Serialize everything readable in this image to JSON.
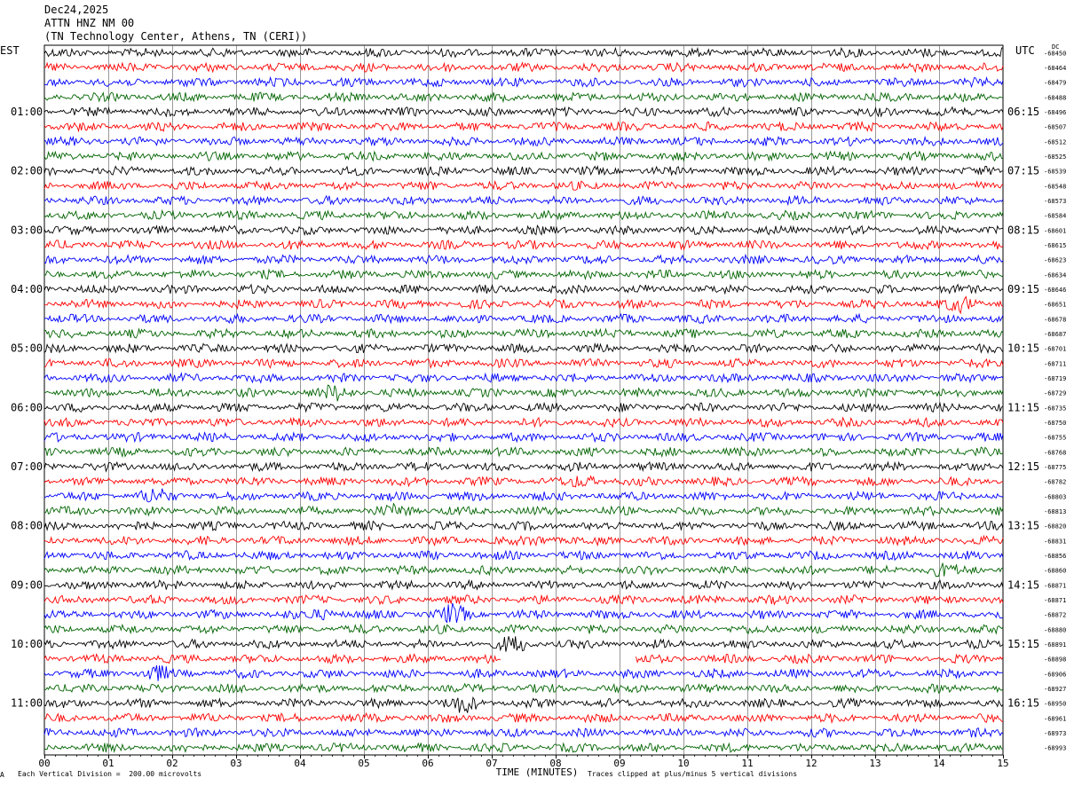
{
  "header": {
    "date": "Dec24,2025",
    "station": "ATTN HNZ NM 00",
    "location": "(TN Technology Center, Athens, TN (CERI))"
  },
  "left_zone": "EST",
  "right_zone": "UTC",
  "dc_label": "DC",
  "footer": {
    "scale_note": "Each Vertical Division =  200.00 microvolts",
    "clip_note": "Traces clipped at plus/minus 5 vertical divisions",
    "corner_mark": "A"
  },
  "colors": {
    "trace_cycle": [
      "#000000",
      "#ff0000",
      "#0000ff",
      "#006400"
    ],
    "grid": "#000000",
    "background": "#ffffff"
  },
  "chart_data": {
    "type": "line",
    "xlabel": "TIME (MINUTES)",
    "xlim": [
      0,
      15
    ],
    "x_ticks": [
      "00",
      "01",
      "02",
      "03",
      "04",
      "05",
      "06",
      "07",
      "08",
      "09",
      "10",
      "11",
      "12",
      "13",
      "14",
      "15"
    ],
    "row_minutes": 15,
    "rows": 48,
    "left_time_labels": [
      "01:00",
      "02:00",
      "03:00",
      "04:00",
      "05:00",
      "06:00",
      "07:00",
      "08:00",
      "09:00",
      "10:00",
      "11:00"
    ],
    "right_time_labels": [
      "06:15",
      "07:15",
      "08:15",
      "09:15",
      "10:15",
      "11:15",
      "12:15",
      "13:15",
      "14:15",
      "15:15",
      "16:15"
    ],
    "first_labeled_row": 4,
    "rows_per_label": 4,
    "dc_values": [
      "-68450",
      "-68464",
      "-68479",
      "-68488",
      "-68496",
      "-68507",
      "-68512",
      "-68525",
      "-68539",
      "-68548",
      "-68573",
      "-68584",
      "-68601",
      "-68615",
      "-68623",
      "-68634",
      "-68646",
      "-68651",
      "-68678",
      "-68687",
      "-68701",
      "-68711",
      "-68719",
      "-68729",
      "-68735",
      "-68750",
      "-68755",
      "-68768",
      "-68775",
      "-68782",
      "-68803",
      "-68813",
      "-68820",
      "-68831",
      "-68856",
      "-68860",
      "-68871",
      "-68871",
      "-68872",
      "-68880",
      "-68891",
      "-68898",
      "-68906",
      "-68927",
      "-68950",
      "-68961",
      "-68973",
      "-68993"
    ],
    "events": [
      {
        "row": 17,
        "minute": 14.4,
        "amp": 1.6
      },
      {
        "row": 23,
        "minute": 4.6,
        "amp": 1.4
      },
      {
        "row": 29,
        "minute": 8.5,
        "amp": 1.3
      },
      {
        "row": 30,
        "minute": 1.7,
        "amp": 1.3
      },
      {
        "row": 31,
        "minute": 5.6,
        "amp": 1.3
      },
      {
        "row": 33,
        "minute": 7.8,
        "amp": 1.2
      },
      {
        "row": 35,
        "minute": 14.0,
        "amp": 1.3
      },
      {
        "row": 38,
        "minute": 4.4,
        "amp": 1.5
      },
      {
        "row": 38,
        "minute": 6.4,
        "amp": 1.6
      },
      {
        "row": 40,
        "minute": 7.4,
        "amp": 1.5
      },
      {
        "row": 42,
        "minute": 1.7,
        "amp": 1.4
      },
      {
        "row": 44,
        "minute": 6.6,
        "amp": 1.7
      }
    ],
    "gaps": [
      {
        "row": 41,
        "start": 7.15,
        "end": 9.25
      }
    ]
  }
}
